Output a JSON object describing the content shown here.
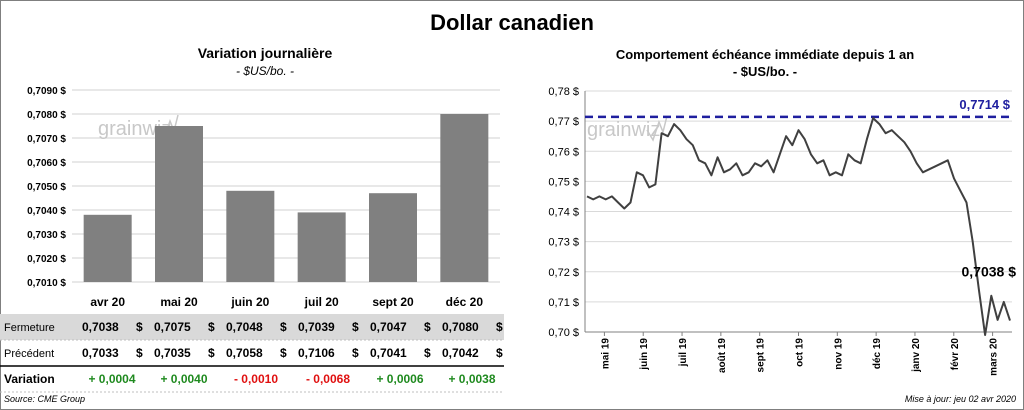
{
  "title": "Dollar canadien",
  "left_panel": {
    "title": "Variation  journalière",
    "unit": "- $US/bo. -"
  },
  "right_panel": {
    "title": "Comportement échéance immédiate depuis 1 an",
    "unit": "- $US/bo. -"
  },
  "watermark": "grainwiz",
  "chart_data": [
    {
      "type": "bar",
      "title": "Variation  journalière",
      "categories": [
        "avr 20",
        "mai 20",
        "juin 20",
        "juil 20",
        "sept 20",
        "déc 20"
      ],
      "values": [
        0.7038,
        0.7075,
        0.7048,
        0.7039,
        0.7047,
        0.708
      ],
      "ylim": [
        0.701,
        0.709
      ],
      "yticks": [
        "0,7010 $",
        "0,7020 $",
        "0,7030 $",
        "0,7040 $",
        "0,7050 $",
        "0,7060 $",
        "0,7070 $",
        "0,7080 $",
        "0,7090 $"
      ],
      "bar_color": "#808080",
      "grid": true
    },
    {
      "type": "line",
      "title": "Comportement échéance immédiate depuis 1 an",
      "x_labels": [
        "mai 19",
        "juin 19",
        "juil 19",
        "août 19",
        "sept 19",
        "oct 19",
        "nov 19",
        "déc 19",
        "janv 20",
        "févr 20",
        "mars 20"
      ],
      "y": [
        0.745,
        0.744,
        0.745,
        0.744,
        0.745,
        0.743,
        0.741,
        0.743,
        0.753,
        0.752,
        0.748,
        0.749,
        0.766,
        0.765,
        0.769,
        0.767,
        0.764,
        0.762,
        0.757,
        0.756,
        0.752,
        0.758,
        0.753,
        0.754,
        0.756,
        0.752,
        0.753,
        0.756,
        0.755,
        0.757,
        0.753,
        0.759,
        0.765,
        0.762,
        0.767,
        0.764,
        0.759,
        0.756,
        0.757,
        0.752,
        0.753,
        0.752,
        0.759,
        0.757,
        0.756,
        0.764,
        0.771,
        0.769,
        0.766,
        0.767,
        0.765,
        0.763,
        0.76,
        0.756,
        0.753,
        0.754,
        0.755,
        0.756,
        0.757,
        0.751,
        0.747,
        0.743,
        0.73,
        0.714,
        0.699,
        0.712,
        0.704,
        0.71,
        0.7038
      ],
      "ylim": [
        0.7,
        0.78
      ],
      "yticks": [
        "0,70 $",
        "0,71 $",
        "0,72 $",
        "0,73 $",
        "0,74 $",
        "0,75 $",
        "0,76 $",
        "0,77 $",
        "0,78 $"
      ],
      "high_value": 0.7714,
      "high_label": "0,7714 $",
      "last_label": "0,7038 $",
      "line_color": "#404040",
      "high_line_color": "#1f1f9f",
      "grid": true
    }
  ],
  "table": {
    "rows": [
      {
        "label": "Fermeture",
        "values": [
          "0,7038",
          "0,7075",
          "0,7048",
          "0,7039",
          "0,7047",
          "0,7080"
        ],
        "suffix": "$"
      },
      {
        "label": "Précédent",
        "values": [
          "0,7033",
          "0,7035",
          "0,7058",
          "0,7106",
          "0,7041",
          "0,7042"
        ],
        "suffix": "$"
      },
      {
        "label": "Variation",
        "values": [
          "+ 0,0004",
          "+ 0,0040",
          "- 0,0010",
          "- 0,0068",
          "+ 0,0006",
          "+ 0,0038"
        ],
        "signs": [
          "pos",
          "pos",
          "neg",
          "neg",
          "pos",
          "pos"
        ]
      }
    ],
    "pos_color": "#1f8a1f",
    "neg_color": "#e01010",
    "highlight_color": "#d9d9d9"
  },
  "footer": {
    "source": "Source: CME Group",
    "updated": "Mise à jour: jeu 02 avr 2020"
  }
}
